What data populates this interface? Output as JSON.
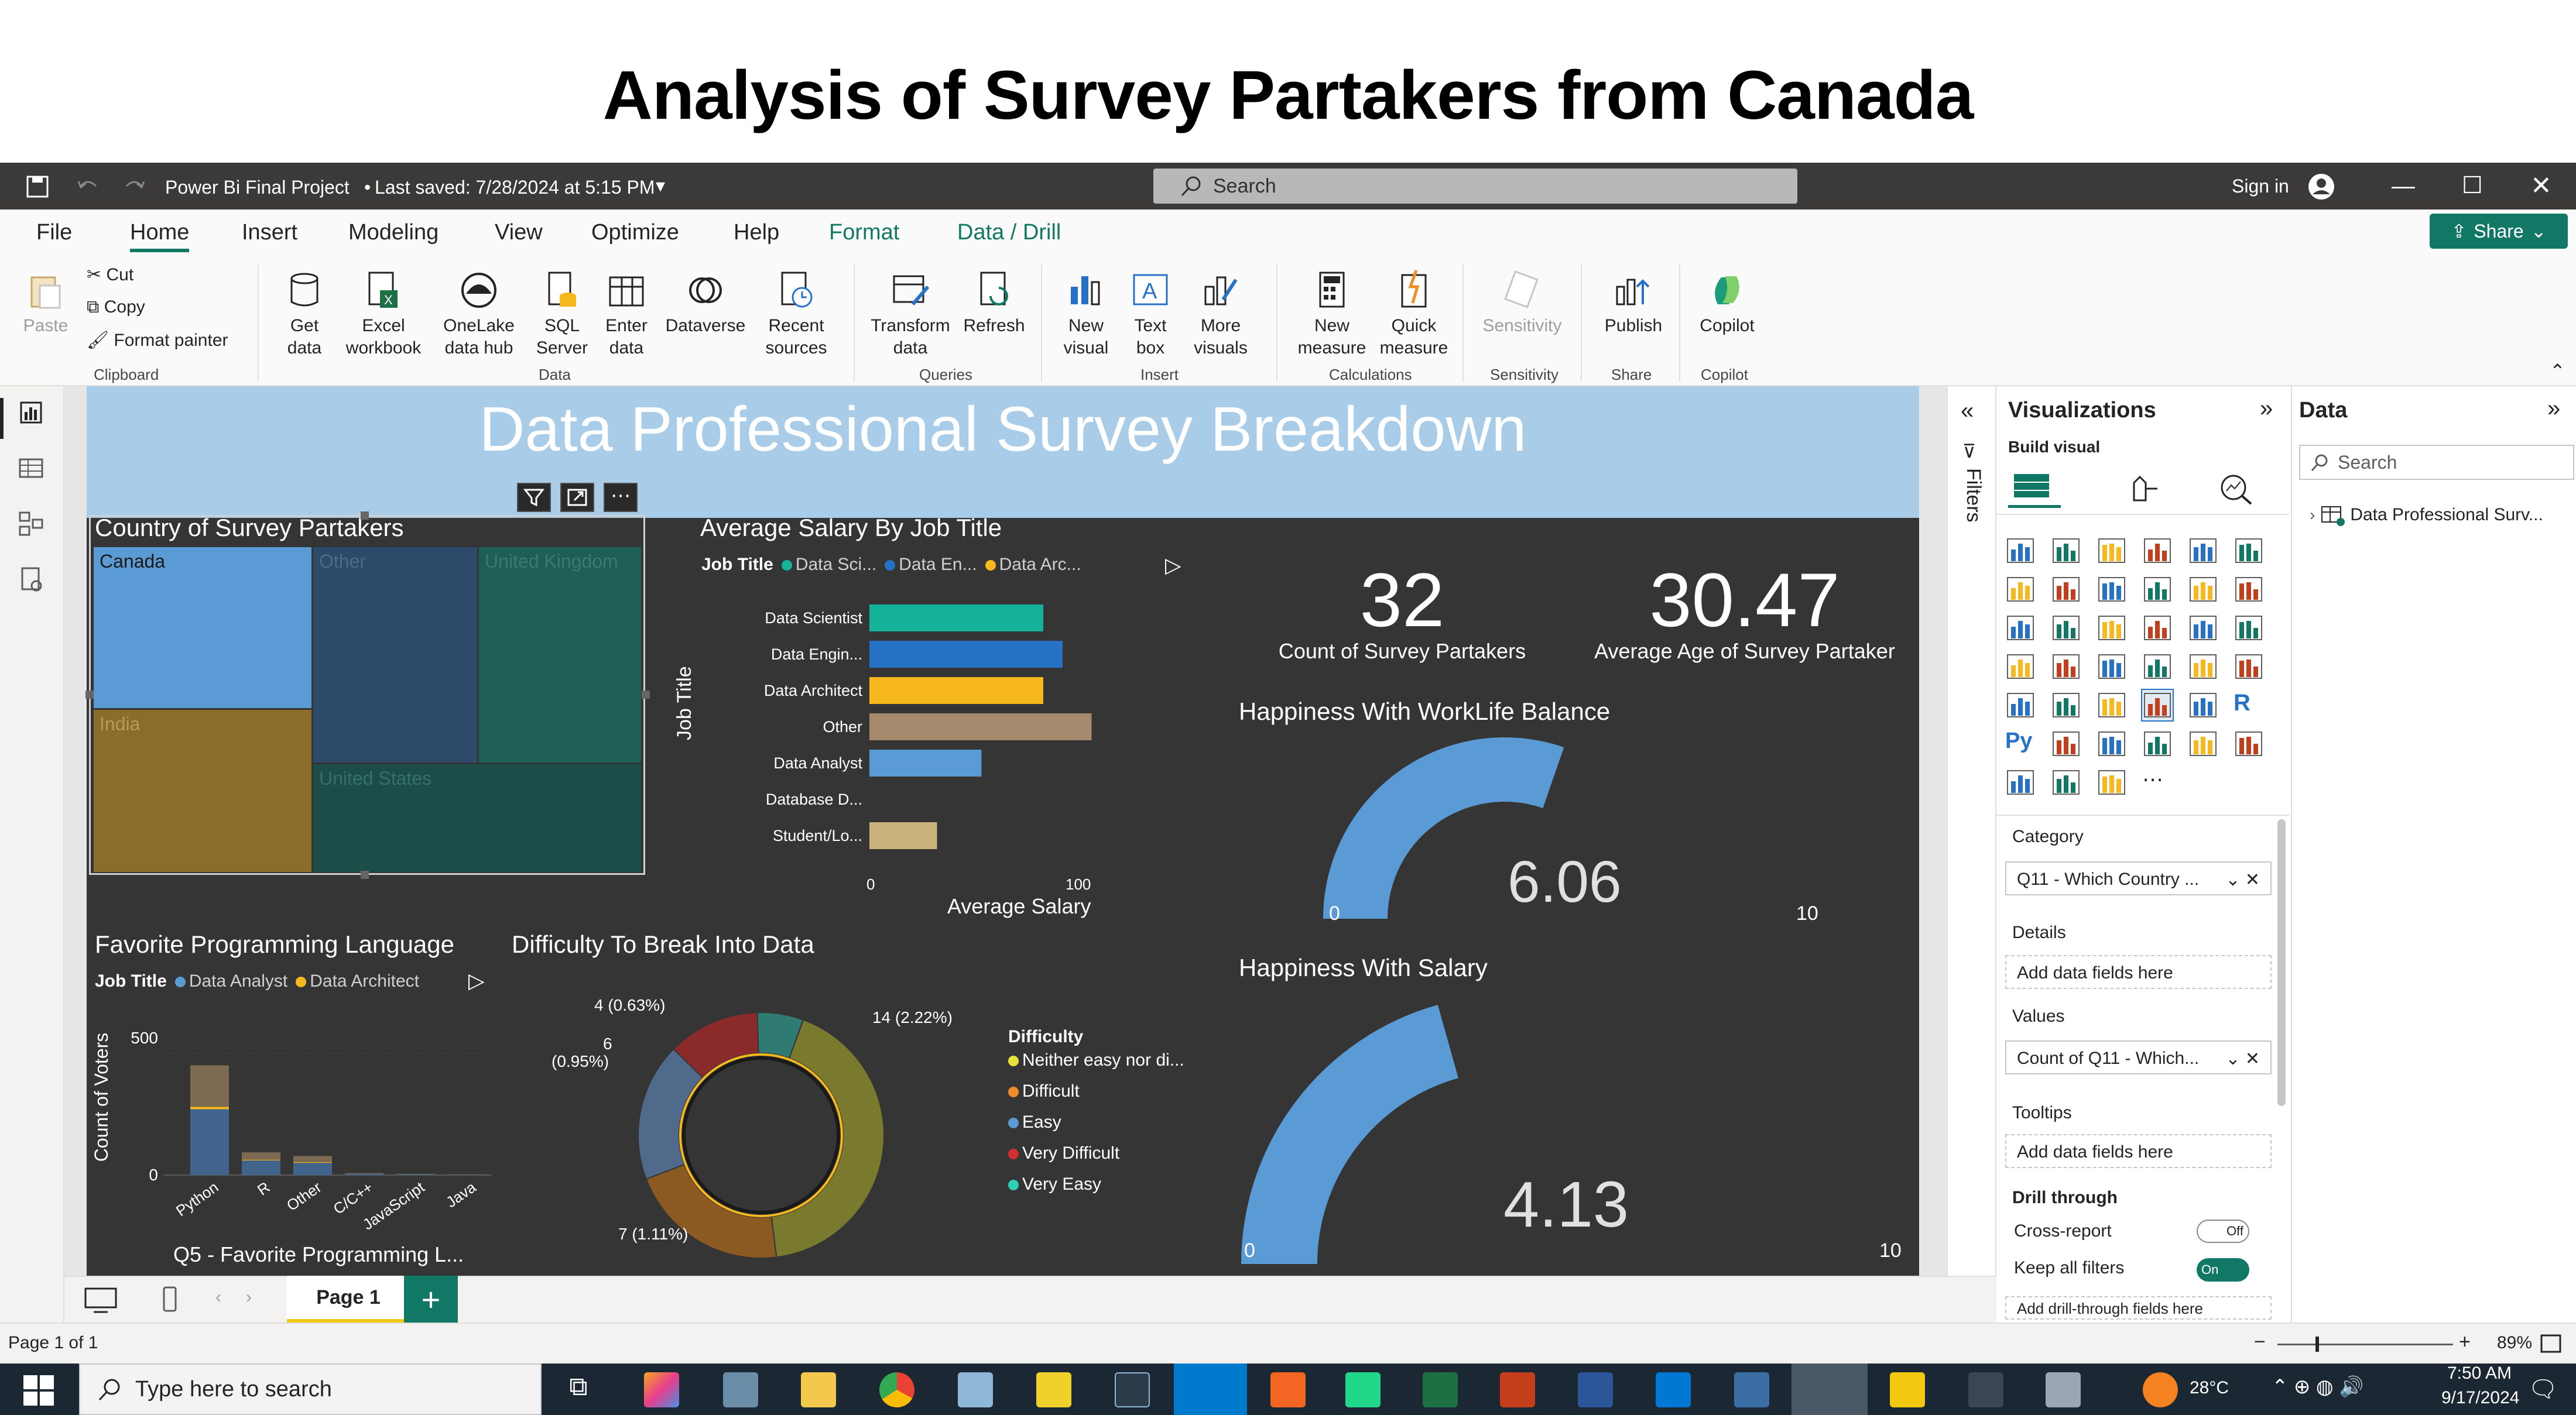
{
  "slide": {
    "title": "Analysis of Survey Partakers from Canada"
  },
  "titlebar": {
    "file_name": "Power Bi Final Project",
    "saved": "Last saved: 7/28/2024 at 5:15 PM",
    "search_placeholder": "Search",
    "sign_in": "Sign in"
  },
  "menu": {
    "tabs": [
      "File",
      "Home",
      "Insert",
      "Modeling",
      "View",
      "Optimize",
      "Help",
      "Format",
      "Data / Drill"
    ],
    "share": "Share"
  },
  "ribbon": {
    "clipboard": {
      "paste": "Paste",
      "cut": "Cut",
      "copy": "Copy",
      "format_painter": "Format painter",
      "group": "Clipboard"
    },
    "data": {
      "get_data": [
        "Get",
        "data"
      ],
      "excel": [
        "Excel",
        "workbook"
      ],
      "onelake": [
        "OneLake",
        "data hub"
      ],
      "sql": [
        "SQL",
        "Server"
      ],
      "enter": [
        "Enter",
        "data"
      ],
      "dataverse": "Dataverse",
      "recent": [
        "Recent",
        "sources"
      ],
      "group": "Data"
    },
    "queries": {
      "transform": [
        "Transform",
        "data"
      ],
      "refresh": "Refresh",
      "group": "Queries"
    },
    "insert": {
      "new_visual": [
        "New",
        "visual"
      ],
      "text_box": [
        "Text",
        "box"
      ],
      "more_visuals": [
        "More",
        "visuals"
      ],
      "group": "Insert"
    },
    "calculations": {
      "new_measure": [
        "New",
        "measure"
      ],
      "quick_measure": [
        "Quick",
        "measure"
      ],
      "group": "Calculations"
    },
    "sensitivity": {
      "label": "Sensitivity",
      "group": "Sensitivity"
    },
    "share": {
      "publish": "Publish",
      "group": "Share"
    },
    "copilot": {
      "label": "Copilot",
      "group": "Copilot"
    }
  },
  "report": {
    "title": "Data Professional Survey Breakdown",
    "treemap": {
      "title": "Country of Survey Partakers",
      "cells": [
        {
          "label": "Canada",
          "color": "#5b9bd5"
        },
        {
          "label": "Other",
          "color": "#2e4a6a"
        },
        {
          "label": "United Kingdom",
          "color": "#1e5f55"
        },
        {
          "label": "India",
          "color": "#8a6d2b"
        },
        {
          "label": "United States",
          "color": "#1d4d48"
        }
      ]
    },
    "salary_chart": {
      "title": "Average Salary By Job Title",
      "legend_title": "Job Title",
      "legend": [
        {
          "name": "Data Sci...",
          "color": "#15b399"
        },
        {
          "name": "Data En...",
          "color": "#2672c7"
        },
        {
          "name": "Data Arc...",
          "color": "#f6b81c"
        }
      ],
      "ylabel": "Job Title",
      "xlabel": "Average Salary",
      "x_ticks": [
        "0",
        "100"
      ]
    },
    "cards": [
      {
        "value": "32",
        "label": "Count of Survey Partakers"
      },
      {
        "value": "30.47",
        "label": "Average Age of Survey Partaker"
      }
    ],
    "gauge_worklife": {
      "title": "Happiness With WorkLife Balance",
      "value": "6.06",
      "min": "0",
      "max": "10"
    },
    "gauge_salary": {
      "title": "Happiness With Salary",
      "value": "4.13",
      "min": "0",
      "max": "10"
    },
    "prog_chart": {
      "title": "Favorite Programming Language",
      "legend_title": "Job Title",
      "legend": [
        {
          "name": "Data Analyst",
          "color": "#5b9bd5"
        },
        {
          "name": "Data Architect",
          "color": "#f6b81c"
        }
      ],
      "ylabel": "Count of Voters",
      "y_ticks": [
        "500",
        "0"
      ],
      "footer": "Q5 - Favorite Programming L..."
    },
    "donut": {
      "title": "Difficulty To Break Into Data",
      "legend_title": "Difficulty",
      "data_labels": [
        "4 (0.63%)",
        "6",
        "(0.95%)",
        "14 (2.22%)",
        "7 (1.11%)"
      ],
      "legend": [
        {
          "name": "Neither easy nor di...",
          "color": "#e8e33b"
        },
        {
          "name": "Difficult",
          "color": "#f08c2a"
        },
        {
          "name": "Easy",
          "color": "#5b9bd5"
        },
        {
          "name": "Very Difficult",
          "color": "#d32f2f"
        },
        {
          "name": "Very Easy",
          "color": "#2fd1b6"
        }
      ]
    }
  },
  "chart_data": [
    {
      "type": "bar",
      "title": "Average Salary By Job Title",
      "orientation": "horizontal",
      "categories": [
        "Data Scientist",
        "Data Engin...",
        "Data Architect",
        "Other",
        "Data Analyst",
        "Database D...",
        "Student/Lo..."
      ],
      "values": [
        90,
        100,
        90,
        115,
        58,
        0,
        35
      ],
      "colors": [
        "#15b399",
        "#2672c7",
        "#f6b81c",
        "#a68a6d",
        "#5b9bd5",
        "#5b9bd5",
        "#c8b27a"
      ],
      "xlabel": "Average Salary",
      "ylabel": "Job Title",
      "xlim": [
        0,
        130
      ]
    },
    {
      "type": "bar",
      "title": "Favorite Programming Language",
      "stacked": true,
      "categories": [
        "Python",
        "R",
        "Other",
        "C/C++",
        "JavaScript",
        "Java"
      ],
      "series": [
        {
          "name": "Data Analyst",
          "values": [
            270,
            60,
            50,
            5,
            3,
            2
          ]
        },
        {
          "name": "Data Architect",
          "values": [
            10,
            3,
            3,
            0,
            0,
            0
          ]
        },
        {
          "values": [
            170,
            30,
            25,
            3,
            2,
            1
          ]
        }
      ],
      "xlabel": "Q5 - Favorite Programming L...",
      "ylabel": "Count of Voters",
      "ylim": [
        0,
        600
      ]
    },
    {
      "type": "pie",
      "title": "Difficulty To Break Into Data",
      "donut": true,
      "categories": [
        "Neither easy nor di...",
        "Difficult",
        "Easy",
        "Very Difficult",
        "Very Easy"
      ],
      "values": [
        14,
        7,
        6,
        4,
        2
      ]
    }
  ],
  "filters": {
    "label": "Filters"
  },
  "viz_pane": {
    "title": "Visualizations",
    "build_visual": "Build visual",
    "category_label": "Category",
    "category_value": "Q11 - Which Country ...",
    "details_label": "Details",
    "details_placeholder": "Add data fields here",
    "values_label": "Values",
    "values_value": "Count of Q11 - Which...",
    "tooltips_label": "Tooltips",
    "tooltips_placeholder": "Add data fields here",
    "drill_label": "Drill through",
    "cross_report": "Cross-report",
    "cross_report_state": "Off",
    "keep_filters": "Keep all filters",
    "keep_filters_state": "On",
    "drill_placeholder": "Add drill-through fields here"
  },
  "data_pane": {
    "title": "Data",
    "search_placeholder": "Search",
    "table": "Data Professional Surv..."
  },
  "pages": {
    "tab": "Page 1"
  },
  "status": {
    "page": "Page 1 of 1",
    "zoom": "89%"
  },
  "taskbar": {
    "search_placeholder": "Type here to search",
    "weather": "28°C",
    "time": "7:50 AM",
    "date": "9/17/2024"
  }
}
